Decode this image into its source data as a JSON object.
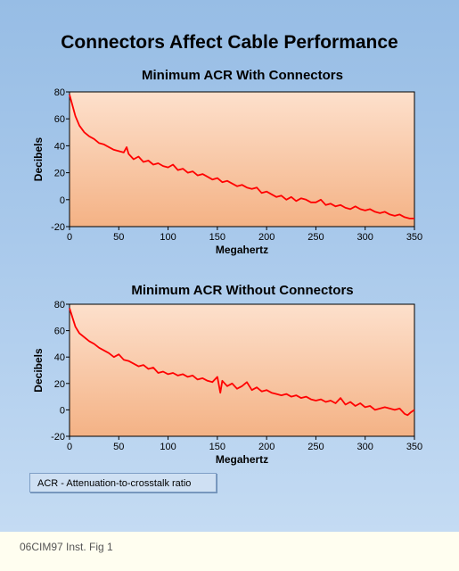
{
  "title": "Connectors Affect Cable Performance",
  "caption": "06CIM97 Inst. Fig 1",
  "legend_note": "ACR - Attenuation-to-crosstalk ratio",
  "colors": {
    "line": "#ff0000",
    "plot_top": "#fde0cc",
    "plot_bottom": "#f4b285",
    "panel": "#a9c9eb"
  },
  "chart_data": [
    {
      "type": "line",
      "title": "Minimum ACR With Connectors",
      "xlabel": "Megahertz",
      "ylabel": "Decibels",
      "xlim": [
        0,
        350
      ],
      "ylim": [
        -20,
        80
      ],
      "xticks": [
        "0",
        "50",
        "100",
        "150",
        "200",
        "250",
        "300",
        "350"
      ],
      "yticks": [
        "-20",
        "0",
        "20",
        "40",
        "60",
        "80"
      ],
      "grid": false,
      "series": [
        {
          "x": [
            0,
            3,
            6,
            10,
            15,
            20,
            25,
            30,
            35,
            40,
            45,
            50,
            55,
            58,
            60,
            65,
            70,
            75,
            80,
            85,
            90,
            95,
            100,
            105,
            110,
            115,
            120,
            125,
            130,
            135,
            140,
            145,
            150,
            155,
            160,
            165,
            170,
            175,
            180,
            185,
            190,
            195,
            200,
            205,
            210,
            215,
            220,
            225,
            230,
            235,
            240,
            245,
            250,
            255,
            260,
            265,
            270,
            275,
            280,
            285,
            290,
            295,
            300,
            305,
            310,
            315,
            320,
            325,
            330,
            335,
            340,
            345,
            350
          ],
          "y": [
            78,
            70,
            62,
            55,
            50,
            47,
            45,
            42,
            41,
            39,
            37,
            36,
            35,
            39,
            34,
            30,
            32,
            28,
            29,
            26,
            27,
            25,
            24,
            26,
            22,
            23,
            20,
            21,
            18,
            19,
            17,
            15,
            16,
            13,
            14,
            12,
            10,
            11,
            9,
            8,
            9,
            5,
            6,
            4,
            2,
            3,
            0,
            2,
            -1,
            1,
            0,
            -2,
            -2,
            0,
            -4,
            -3,
            -5,
            -4,
            -6,
            -7,
            -5,
            -7,
            -8,
            -7,
            -9,
            -10,
            -9,
            -11,
            -12,
            -11,
            -13,
            -14,
            -14
          ]
        }
      ]
    },
    {
      "type": "line",
      "title": "Minimum ACR Without Connectors",
      "xlabel": "Megahertz",
      "ylabel": "Decibels",
      "xlim": [
        0,
        350
      ],
      "ylim": [
        -20,
        80
      ],
      "xticks": [
        "0",
        "50",
        "100",
        "150",
        "200",
        "250",
        "300",
        "350"
      ],
      "yticks": [
        "-20",
        "0",
        "20",
        "40",
        "60",
        "80"
      ],
      "grid": false,
      "series": [
        {
          "x": [
            0,
            3,
            6,
            10,
            15,
            20,
            25,
            30,
            35,
            40,
            45,
            50,
            55,
            60,
            65,
            70,
            75,
            80,
            85,
            90,
            95,
            100,
            105,
            110,
            115,
            120,
            125,
            130,
            135,
            140,
            145,
            150,
            153,
            155,
            160,
            165,
            170,
            175,
            180,
            185,
            190,
            195,
            200,
            205,
            210,
            215,
            220,
            225,
            230,
            235,
            240,
            245,
            250,
            255,
            260,
            265,
            270,
            275,
            280,
            285,
            290,
            295,
            300,
            305,
            310,
            315,
            320,
            325,
            330,
            335,
            340,
            343,
            346,
            350
          ],
          "y": [
            77,
            70,
            63,
            58,
            55,
            52,
            50,
            47,
            45,
            43,
            40,
            42,
            38,
            37,
            35,
            33,
            34,
            31,
            32,
            28,
            29,
            27,
            28,
            26,
            27,
            25,
            26,
            23,
            24,
            22,
            21,
            25,
            13,
            22,
            18,
            20,
            16,
            18,
            21,
            15,
            17,
            14,
            15,
            13,
            12,
            11,
            12,
            10,
            11,
            9,
            10,
            8,
            7,
            8,
            6,
            7,
            5,
            9,
            4,
            6,
            3,
            5,
            2,
            3,
            0,
            1,
            2,
            1,
            0,
            1,
            -3,
            -4,
            -2,
            0
          ]
        }
      ]
    }
  ]
}
